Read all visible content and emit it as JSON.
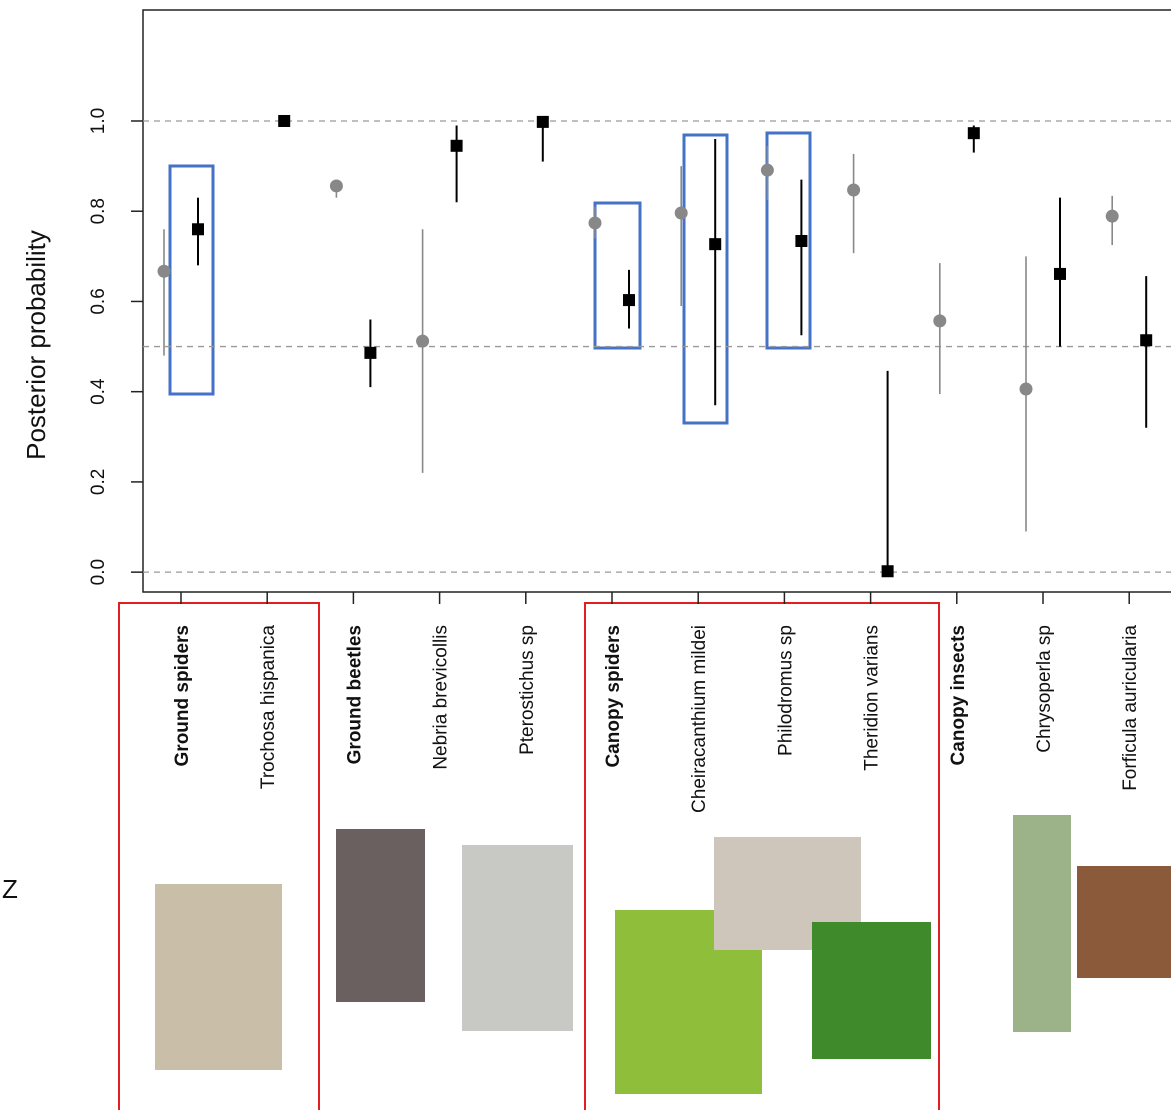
{
  "chart_data": {
    "type": "errorbar",
    "ylabel": "Posterior probability",
    "side_label": "Z",
    "categories": [
      "Ground spiders",
      "Trochosa hispanica",
      "Ground beetles",
      "Nebria brevicollis",
      "Pterostichus sp",
      "Canopy spiders",
      "Cheiracanthium mildei",
      "Philodromus sp",
      "Theridion varians",
      "Canopy insects",
      "Chrysoperla sp",
      "Forficula auricularia"
    ],
    "bold_categories": [
      0,
      2,
      5,
      9
    ],
    "series": [
      {
        "color": "#888888",
        "marker": "circle",
        "values": [
          0.667,
          null,
          0.856,
          0.512,
          null,
          0.774,
          0.796,
          0.891,
          0.847,
          0.557,
          0.406,
          0.789
        ],
        "lower": [
          0.48,
          null,
          0.83,
          0.22,
          null,
          0.74,
          0.59,
          0.825,
          0.707,
          0.395,
          0.09,
          0.725
        ],
        "upper": [
          0.76,
          null,
          0.87,
          0.76,
          null,
          0.81,
          0.9,
          0.945,
          0.927,
          0.685,
          0.7,
          0.834
        ]
      },
      {
        "color": "#000000",
        "marker": "square",
        "values": [
          0.76,
          1.0,
          0.486,
          0.945,
          0.998,
          0.603,
          0.727,
          0.734,
          0.002,
          0.973,
          0.661,
          0.514
        ],
        "lower": [
          0.68,
          0.995,
          0.41,
          0.82,
          0.91,
          0.54,
          0.37,
          0.525,
          0.0,
          0.93,
          0.5,
          0.32
        ],
        "upper": [
          0.83,
          1.0,
          0.56,
          0.99,
          1.0,
          0.67,
          0.96,
          0.87,
          0.446,
          0.99,
          0.83,
          0.656
        ]
      }
    ],
    "ylim": [
      -0.044,
      1.246
    ],
    "yticks": [
      {
        "value": 0,
        "label": "0.0"
      },
      0.2,
      0.4,
      0.6,
      0.8,
      {
        "value": 1,
        "label": "1.0"
      }
    ],
    "hlines": [
      0,
      0.5,
      1
    ]
  }
}
